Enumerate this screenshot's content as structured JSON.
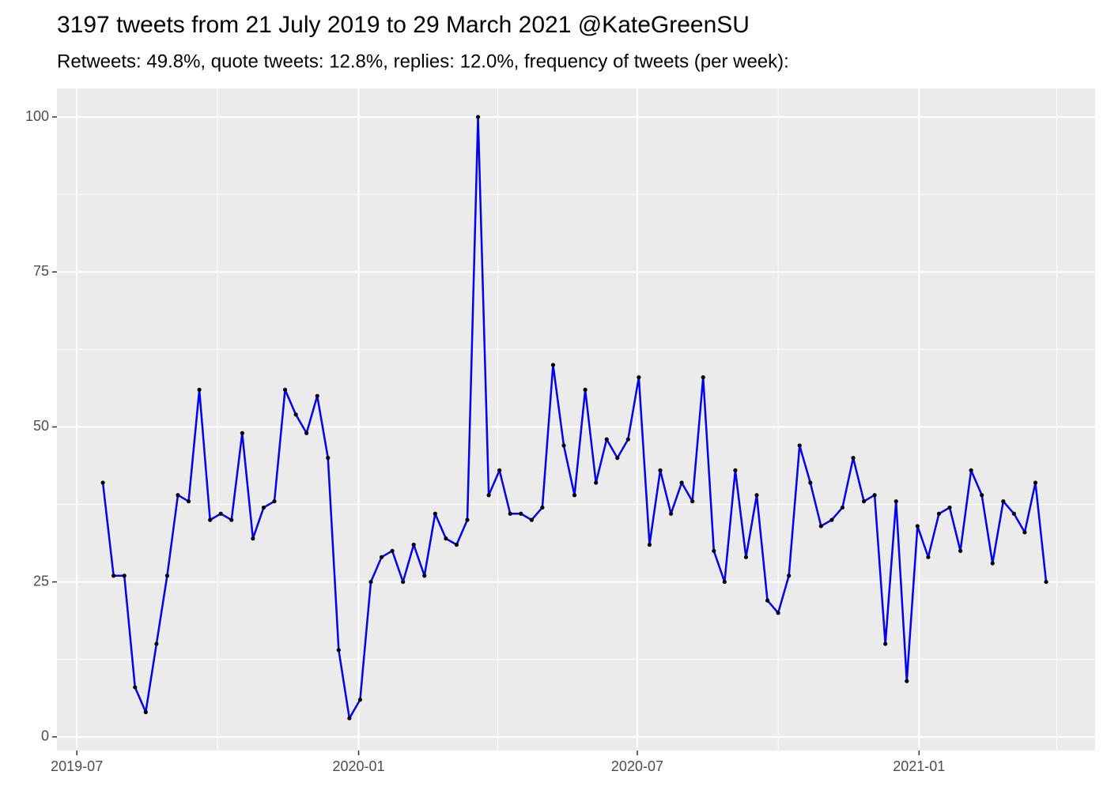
{
  "chart_data": {
    "type": "line",
    "title": "3197 tweets from 21 July 2019 to 29 March 2021 @KateGreenSU",
    "subtitle": "Retweets: 49.8%, quote tweets: 12.8%, replies: 12.0%, frequency of tweets (per week):",
    "x": [
      "2019-07-18",
      "2019-07-25",
      "2019-08-01",
      "2019-08-08",
      "2019-08-15",
      "2019-08-22",
      "2019-08-29",
      "2019-09-05",
      "2019-09-12",
      "2019-09-19",
      "2019-09-26",
      "2019-10-03",
      "2019-10-10",
      "2019-10-17",
      "2019-10-24",
      "2019-10-31",
      "2019-11-07",
      "2019-11-14",
      "2019-11-21",
      "2019-11-28",
      "2019-12-05",
      "2019-12-12",
      "2019-12-19",
      "2019-12-26",
      "2020-01-02",
      "2020-01-09",
      "2020-01-16",
      "2020-01-23",
      "2020-01-30",
      "2020-02-06",
      "2020-02-13",
      "2020-02-20",
      "2020-02-27",
      "2020-03-05",
      "2020-03-12",
      "2020-03-19",
      "2020-03-26",
      "2020-04-02",
      "2020-04-09",
      "2020-04-16",
      "2020-04-23",
      "2020-04-30",
      "2020-05-07",
      "2020-05-14",
      "2020-05-21",
      "2020-05-28",
      "2020-06-04",
      "2020-06-11",
      "2020-06-18",
      "2020-06-25",
      "2020-07-02",
      "2020-07-09",
      "2020-07-16",
      "2020-07-23",
      "2020-07-30",
      "2020-08-06",
      "2020-08-13",
      "2020-08-20",
      "2020-08-27",
      "2020-09-03",
      "2020-09-10",
      "2020-09-17",
      "2020-09-24",
      "2020-10-01",
      "2020-10-08",
      "2020-10-15",
      "2020-10-22",
      "2020-10-29",
      "2020-11-05",
      "2020-11-12",
      "2020-11-19",
      "2020-11-26",
      "2020-12-03",
      "2020-12-10",
      "2020-12-17",
      "2020-12-24",
      "2020-12-31",
      "2021-01-07",
      "2021-01-14",
      "2021-01-21",
      "2021-01-28",
      "2021-02-04",
      "2021-02-11",
      "2021-02-18",
      "2021-02-25",
      "2021-03-04",
      "2021-03-11",
      "2021-03-18",
      "2021-03-25"
    ],
    "series": [
      {
        "color": "#0000ee",
        "point_color": "#000000",
        "values": [
          41,
          26,
          26,
          8,
          4,
          15,
          26,
          39,
          38,
          56,
          35,
          36,
          35,
          49,
          32,
          37,
          38,
          56,
          52,
          49,
          55,
          45,
          14,
          3,
          6,
          25,
          29,
          30,
          25,
          31,
          26,
          36,
          32,
          31,
          35,
          100,
          39,
          43,
          36,
          36,
          35,
          37,
          60,
          47,
          39,
          56,
          41,
          48,
          45,
          48,
          58,
          31,
          43,
          36,
          41,
          38,
          58,
          30,
          25,
          43,
          29,
          39,
          22,
          20,
          26,
          47,
          41,
          34,
          35,
          37,
          45,
          38,
          39,
          15,
          38,
          9,
          34,
          29,
          36,
          37,
          30,
          43,
          39,
          28,
          38,
          36,
          33,
          41,
          25
        ]
      }
    ],
    "xlim": [
      "2019-06-18",
      "2021-04-26"
    ],
    "xticks": [
      {
        "value": "2019-07-01",
        "label": "2019-07"
      },
      {
        "value": "2020-01-01",
        "label": "2020-01"
      },
      {
        "value": "2020-07-01",
        "label": "2020-07"
      },
      {
        "value": "2021-01-01",
        "label": "2021-01"
      }
    ],
    "xminor": [
      "2019-10-01",
      "2020-04-01",
      "2020-10-01",
      "2021-04-01"
    ],
    "ylim": [
      -2.2,
      104.6
    ],
    "yticks": [
      0,
      25,
      50,
      75,
      100
    ],
    "yminor": [
      12.5,
      37.5,
      62.5,
      87.5
    ],
    "grid": true
  }
}
